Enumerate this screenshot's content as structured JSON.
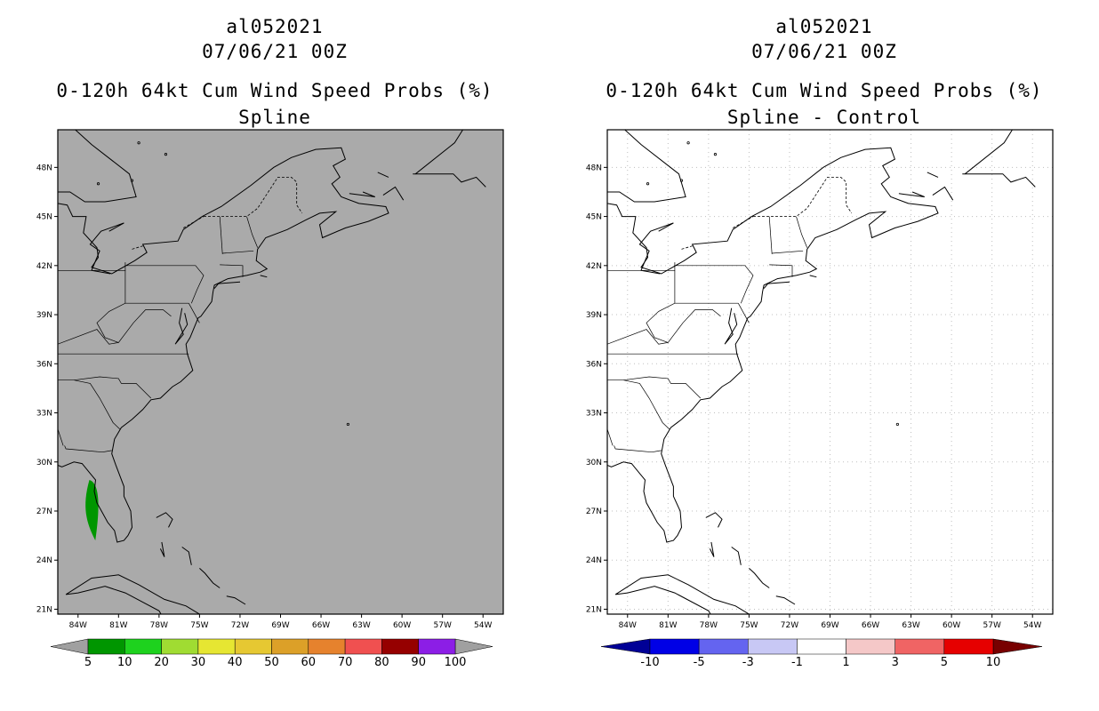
{
  "panels": [
    {
      "storm_id": "al052021",
      "datetime": "07/06/21 00Z",
      "product": "0-120h 64kt Cum Wind Speed Probs (%)",
      "subtitle": "Spline",
      "background": "#aaaaaa",
      "colorbar": {
        "colors": [
          "#009600",
          "#1ed21e",
          "#a0dc32",
          "#e6e632",
          "#e6c832",
          "#dca028",
          "#e6822d",
          "#f05050",
          "#960000",
          "#8c1ee6"
        ],
        "labels": [
          "5",
          "10",
          "20",
          "30",
          "40",
          "50",
          "60",
          "70",
          "80",
          "90",
          "100"
        ],
        "left_cap": "#a0a0a0",
        "right_cap": "#a0a0a0"
      },
      "probability_area": {
        "color": "#009600",
        "lon": [
          -83.4,
          -82.6
        ],
        "lat": [
          25.2,
          28.9
        ],
        "min_pct": 5
      }
    },
    {
      "storm_id": "al052021",
      "datetime": "07/06/21 00Z",
      "product": "0-120h 64kt Cum Wind Speed Probs (%)",
      "subtitle": "Spline - Control",
      "background": "#ffffff",
      "colorbar": {
        "colors": [
          "#0000e6",
          "#6464f0",
          "#c8c8f5",
          "#ffffff",
          "#f5c8c8",
          "#f06464",
          "#e60000"
        ],
        "labels": [
          "-10",
          "-5",
          "-3",
          "-1",
          "1",
          "3",
          "5",
          "10"
        ],
        "left_cap": "#000096",
        "right_cap": "#780000"
      }
    }
  ],
  "map": {
    "lon_labels": [
      "84W",
      "81W",
      "78W",
      "75W",
      "72W",
      "69W",
      "66W",
      "63W",
      "60W",
      "57W",
      "54W"
    ],
    "lat_labels": [
      "21N",
      "24N",
      "27N",
      "30N",
      "33N",
      "36N",
      "39N",
      "42N",
      "45N",
      "48N"
    ],
    "lon_range": [
      -85.5,
      -52.5
    ],
    "lat_range": [
      20.7,
      50.3
    ]
  }
}
